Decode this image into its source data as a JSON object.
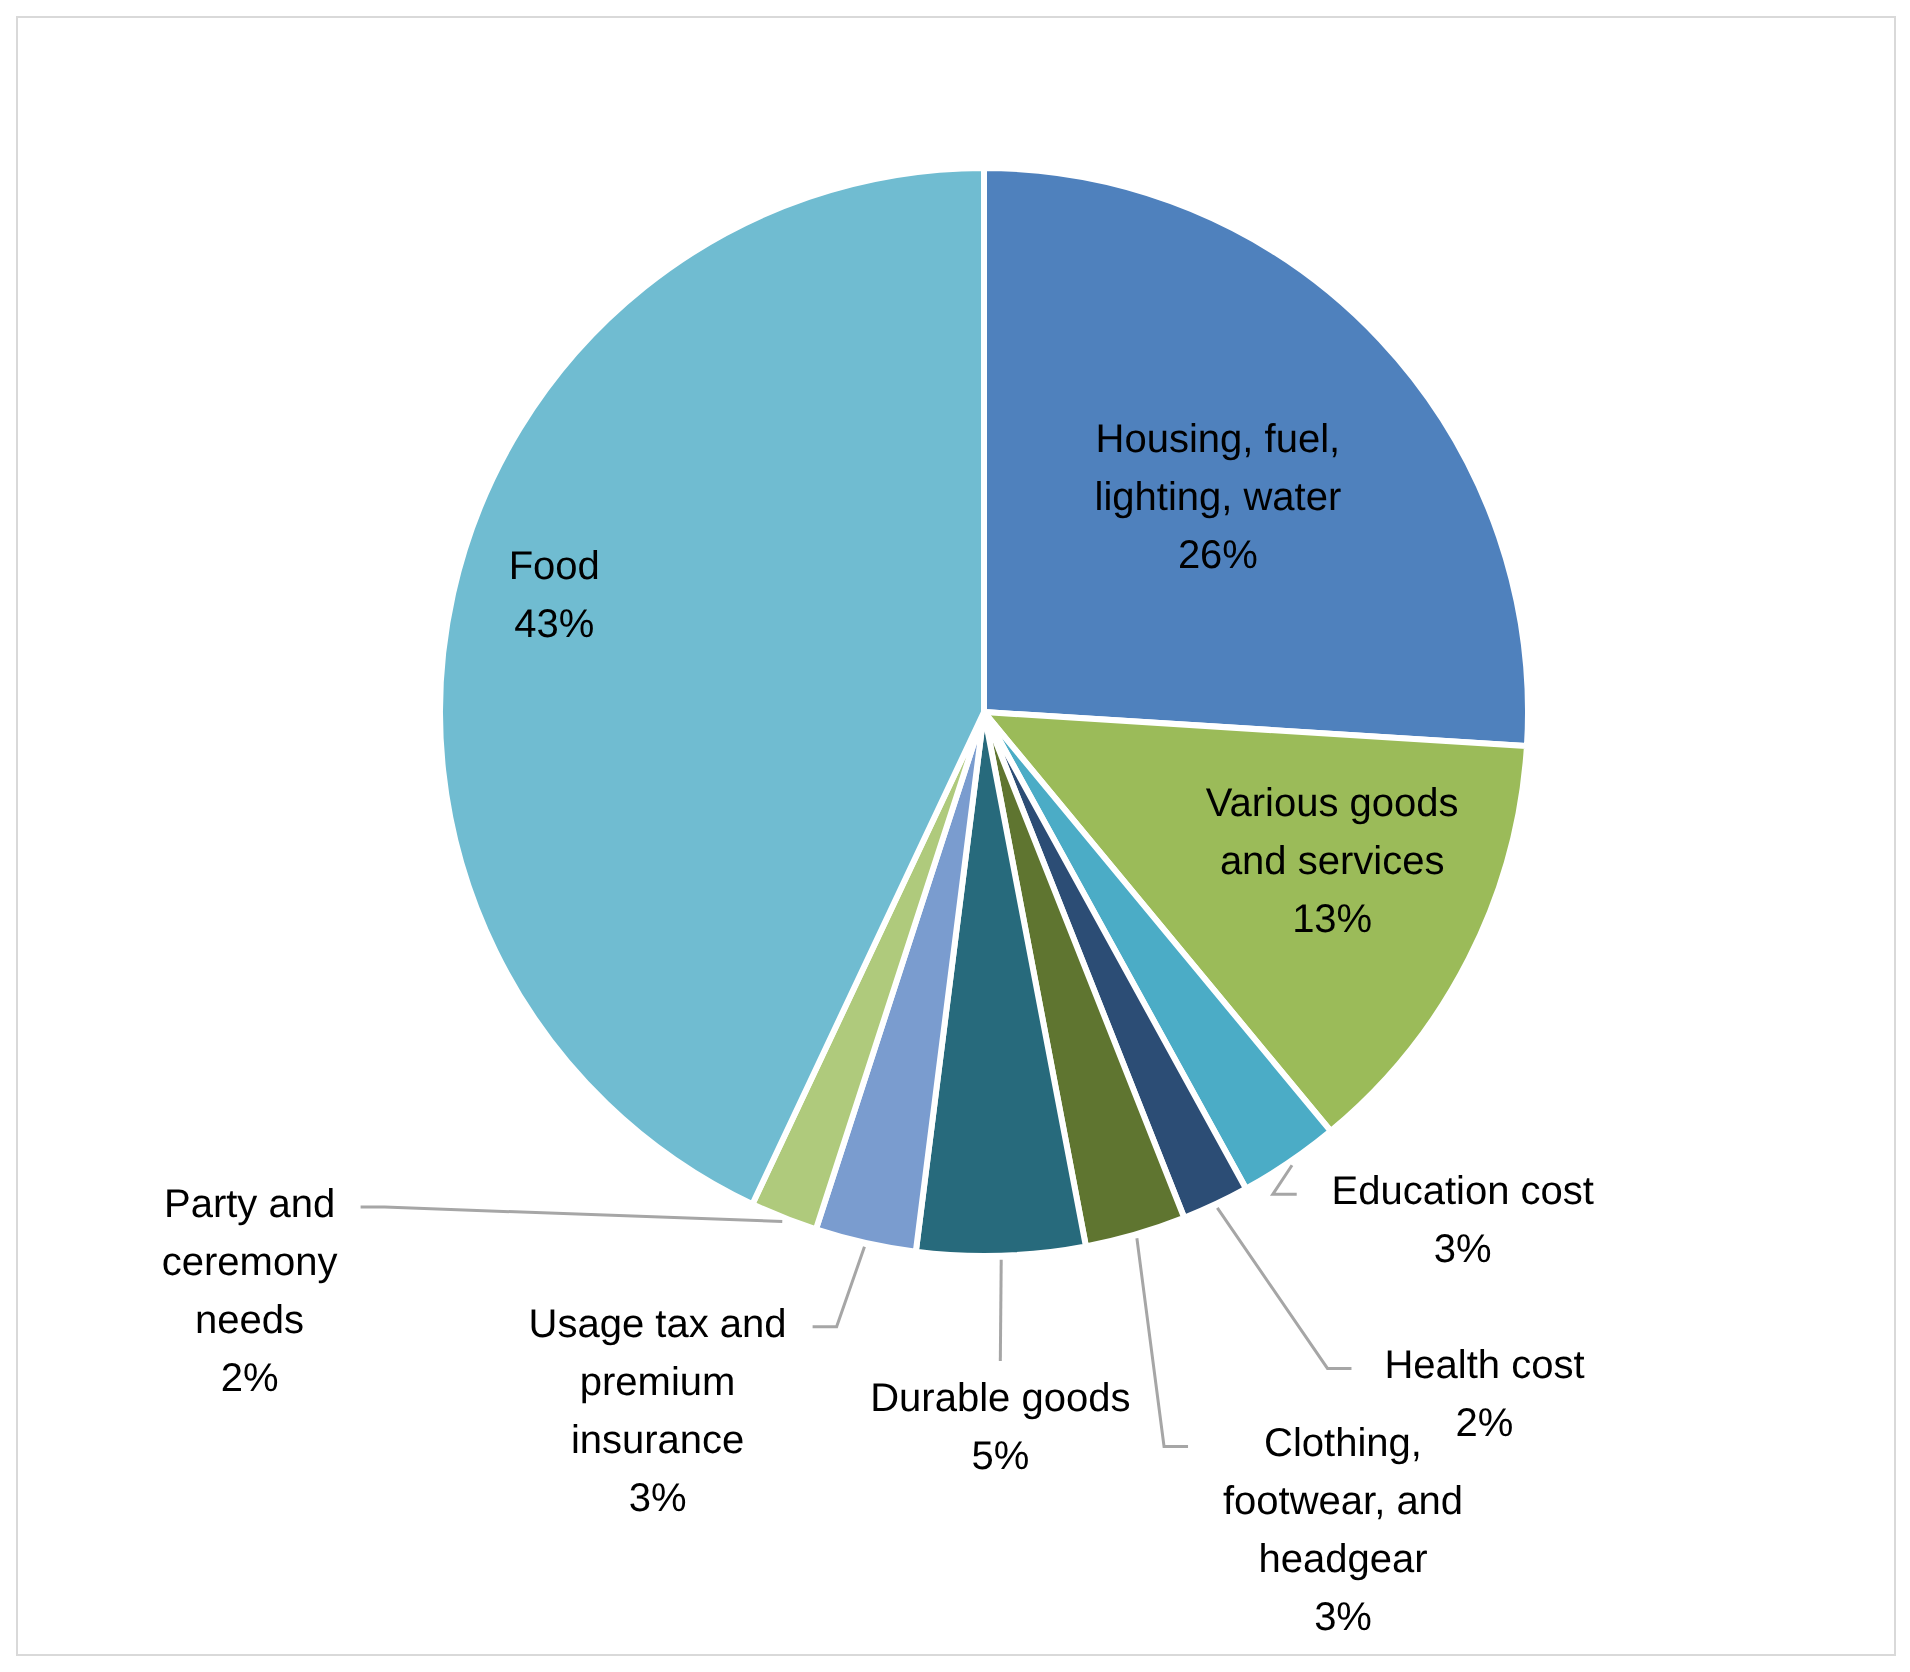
{
  "chart_data": {
    "type": "pie",
    "categories": [
      "Housing, fuel, lighting, water",
      "Various goods and services",
      "Education cost",
      "Health cost",
      "Clothing, footwear, and headgear",
      "Durable goods",
      "Usage tax and premium insurance",
      "Party and ceremony needs",
      "Food"
    ],
    "values": [
      26,
      13,
      3,
      2,
      3,
      5,
      3,
      2,
      43
    ],
    "value_labels": [
      "26%",
      "13%",
      "3%",
      "2%",
      "3%",
      "5%",
      "3%",
      "2%",
      "43%"
    ],
    "colors": [
      "#4f81bd",
      "#9bbb59",
      "#4bacc6",
      "#2c4d75",
      "#5f7530",
      "#276a7c",
      "#7a9ccf",
      "#afca7c",
      "#70bcd1"
    ],
    "legend": false
  }
}
